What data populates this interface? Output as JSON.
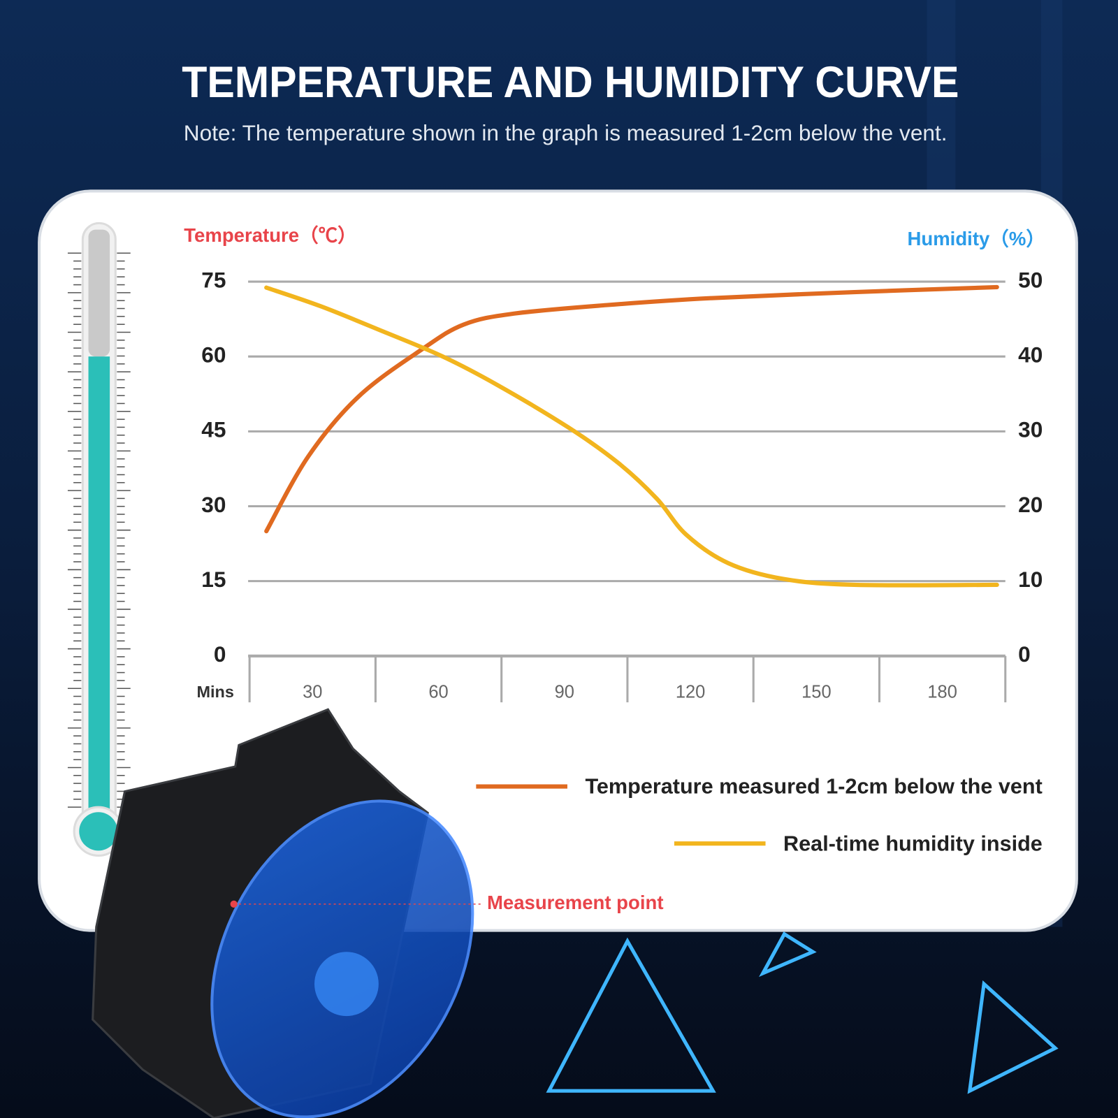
{
  "chart_data": {
    "type": "line",
    "title": "TEMPERATURE AND HUMIDITY CURVE",
    "subtitle": "Note: The temperature shown in the graph is measured 1-2cm below the vent.",
    "y_label": "Temperature（℃）",
    "y2_label": "Humidity（%）",
    "x_label": "Mins",
    "xlim": [
      15,
      195
    ],
    "xticks": [
      30,
      60,
      90,
      120,
      150,
      180
    ],
    "ylim": [
      0,
      75
    ],
    "yticks": [
      0,
      15,
      30,
      45,
      60,
      75
    ],
    "y2lim": [
      0,
      50
    ],
    "y2ticks": [
      0,
      10,
      20,
      30,
      40,
      50
    ],
    "grid": true,
    "legend": "bottom-right",
    "series": [
      {
        "name": "Temperature measured 1-2cm below the vent",
        "color": "#e06a20",
        "x": [
          19,
          29,
          41,
          56,
          66,
          78,
          100,
          125,
          159,
          193
        ],
        "values": [
          25,
          40,
          52,
          61.4,
          66.4,
          68.6,
          70.3,
          71.7,
          72.9,
          73.9
        ]
      },
      {
        "name": "Real-time humidity inside",
        "color": "#f2b51e",
        "axis": "y2",
        "x": [
          19,
          32,
          47,
          61,
          74,
          91,
          103,
          112,
          119,
          129,
          142,
          159,
          193
        ],
        "values": [
          49.2,
          46.7,
          43.3,
          40,
          36.2,
          30.5,
          25.7,
          21,
          16.2,
          12.4,
          10.3,
          9.5,
          9.5
        ]
      }
    ],
    "annotation": "Measurement point"
  }
}
